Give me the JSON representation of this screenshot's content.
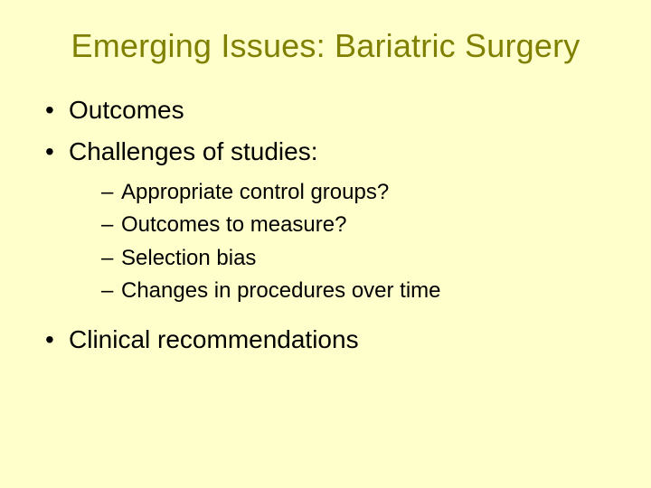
{
  "slide": {
    "background_color": "#ffffcc",
    "title": {
      "text": "Emerging Issues:  Bariatric Surgery",
      "color": "#808000",
      "font_size_pt": 36,
      "font_weight": "normal",
      "align": "center"
    },
    "body": {
      "font_size_pt": 28,
      "color": "#000000",
      "bullet_char_l1": "•",
      "bullet_char_l2": "–",
      "sub_font_size_pt": 24,
      "items": [
        {
          "text": "Outcomes",
          "sub": []
        },
        {
          "text": "Challenges of studies:",
          "sub": [
            "Appropriate control groups?",
            "Outcomes to measure?",
            "Selection bias",
            "Changes in procedures over time"
          ]
        },
        {
          "text": "Clinical recommendations",
          "sub": []
        }
      ]
    }
  }
}
